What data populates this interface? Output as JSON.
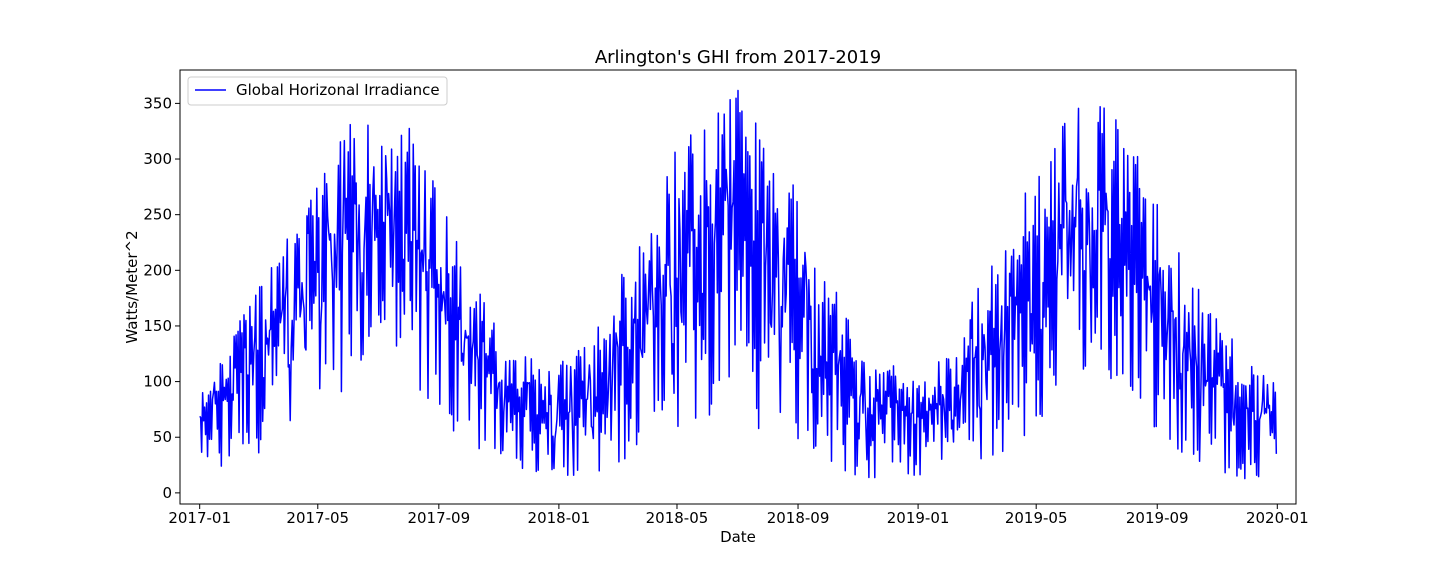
{
  "chart_data": {
    "type": "line",
    "title": "Arlington's GHI from 2017-2019",
    "xlabel": "Date",
    "ylabel": "Watts/Meter^2",
    "x_range": [
      "2016-12-12",
      "2020-01-20"
    ],
    "ylim": [
      -10,
      380
    ],
    "x_ticks": [
      "2017-01",
      "2017-05",
      "2017-09",
      "2018-01",
      "2018-05",
      "2018-09",
      "2019-01",
      "2019-05",
      "2019-09",
      "2020-01"
    ],
    "x_tick_dates": [
      "2017-01-01",
      "2017-05-01",
      "2017-09-01",
      "2018-01-01",
      "2018-05-01",
      "2018-09-01",
      "2019-01-01",
      "2019-05-01",
      "2019-09-01",
      "2020-01-01"
    ],
    "y_ticks": [
      0,
      50,
      100,
      150,
      200,
      250,
      300,
      350
    ],
    "grid": false,
    "legend": {
      "position": "top-left",
      "entries": [
        "Global Horizonal Irradiance"
      ]
    },
    "series": [
      {
        "name": "Global Horizonal Irradiance",
        "color": "#0000ff",
        "frequency": "daily",
        "start_date": "2017-01-01",
        "end_date": "2019-12-31",
        "seasonal_profile": {
          "dates": [
            "2017-01-01",
            "2017-02-01",
            "2017-03-01",
            "2017-04-01",
            "2017-05-01",
            "2017-06-01",
            "2017-07-01",
            "2017-08-01",
            "2017-09-01",
            "2017-10-01",
            "2017-11-01",
            "2017-12-01",
            "2018-01-01",
            "2018-02-01",
            "2018-03-01",
            "2018-04-01",
            "2018-05-01",
            "2018-06-01",
            "2018-07-01",
            "2018-08-01",
            "2018-09-01",
            "2018-10-01",
            "2018-11-01",
            "2018-12-01",
            "2019-01-01",
            "2019-02-01",
            "2019-03-01",
            "2019-04-01",
            "2019-05-01",
            "2019-06-01",
            "2019-07-01",
            "2019-08-01",
            "2019-09-01",
            "2019-10-01",
            "2019-11-01",
            "2019-12-01",
            "2019-12-31"
          ],
          "upper": [
            100,
            140,
            185,
            240,
            300,
            350,
            355,
            330,
            270,
            200,
            150,
            125,
            115,
            140,
            190,
            250,
            320,
            340,
            365,
            320,
            270,
            200,
            150,
            125,
            110,
            130,
            180,
            240,
            300,
            340,
            360,
            330,
            260,
            200,
            160,
            120,
            100
          ],
          "lower": [
            20,
            25,
            35,
            50,
            60,
            90,
            150,
            100,
            60,
            45,
            30,
            20,
            15,
            15,
            25,
            45,
            55,
            70,
            60,
            50,
            35,
            25,
            15,
            10,
            10,
            15,
            25,
            35,
            50,
            95,
            105,
            100,
            55,
            30,
            20,
            12,
            15
          ]
        }
      }
    ]
  }
}
